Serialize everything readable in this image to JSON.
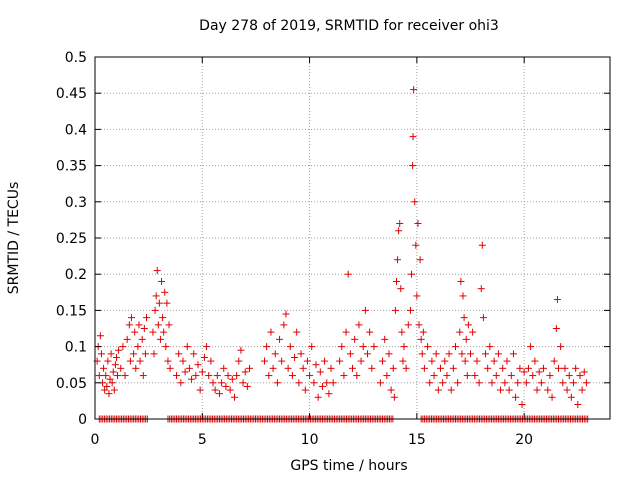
{
  "chart_data": {
    "type": "scatter",
    "title": "Day 278 of 2019, SRMTID for receiver ohi3",
    "xlabel": "GPS time / hours",
    "ylabel": "SRMTID / TECUs",
    "xlim": [
      0,
      24
    ],
    "ylim": [
      0,
      0.5
    ],
    "xticks": [
      0,
      5,
      10,
      15,
      20
    ],
    "xtick_labels": [
      "0",
      "5",
      "10",
      "15",
      "20"
    ],
    "yticks": [
      0,
      0.05,
      0.1,
      0.15,
      0.2,
      0.25,
      0.3,
      0.35,
      0.4,
      0.45,
      0.5
    ],
    "ytick_labels": [
      "0",
      "0.05",
      "0.1",
      "0.15",
      "0.2",
      "0.25",
      "0.3",
      "0.35",
      "0.4",
      "0.45",
      "0.5"
    ],
    "grid": true,
    "marker": "+",
    "marker_color": "#e00000",
    "series": [
      {
        "name": "SRMTID",
        "points": [
          [
            0.1,
            0.08
          ],
          [
            0.15,
            0.1
          ],
          [
            0.2,
            0.06
          ],
          [
            0.25,
            0.115
          ],
          [
            0.3,
            0.09
          ],
          [
            0.35,
            0.05
          ],
          [
            0.4,
            0.07
          ],
          [
            0.45,
            0.04
          ],
          [
            0.5,
            0.06
          ],
          [
            0.55,
            0.045
          ],
          [
            0.6,
            0.08
          ],
          [
            0.65,
            0.035
          ],
          [
            0.7,
            0.055
          ],
          [
            0.75,
            0.09
          ],
          [
            0.8,
            0.05
          ],
          [
            0.85,
            0.065
          ],
          [
            0.9,
            0.04
          ],
          [
            0.95,
            0.075
          ],
          [
            1.0,
            0.085
          ],
          [
            1.05,
            0.06
          ],
          [
            1.1,
            0.095
          ],
          [
            1.2,
            0.07
          ],
          [
            1.3,
            0.1
          ],
          [
            1.4,
            0.06
          ],
          [
            1.5,
            0.11
          ],
          [
            1.6,
            0.13
          ],
          [
            1.65,
            0.08
          ],
          [
            1.7,
            0.14
          ],
          [
            1.8,
            0.09
          ],
          [
            1.85,
            0.12
          ],
          [
            1.9,
            0.07
          ],
          [
            2.0,
            0.1
          ],
          [
            2.05,
            0.13
          ],
          [
            2.1,
            0.08
          ],
          [
            2.2,
            0.11
          ],
          [
            2.25,
            0.06
          ],
          [
            2.3,
            0.125
          ],
          [
            2.35,
            0.09
          ],
          [
            2.4,
            0.14
          ],
          [
            2.7,
            0.12
          ],
          [
            2.75,
            0.09
          ],
          [
            2.8,
            0.15
          ],
          [
            2.85,
            0.17
          ],
          [
            2.9,
            0.205
          ],
          [
            2.95,
            0.13
          ],
          [
            3.0,
            0.16
          ],
          [
            3.05,
            0.11
          ],
          [
            3.1,
            0.19
          ],
          [
            3.15,
            0.14
          ],
          [
            3.2,
            0.12
          ],
          [
            3.25,
            0.175
          ],
          [
            3.3,
            0.1
          ],
          [
            3.35,
            0.16
          ],
          [
            3.4,
            0.08
          ],
          [
            3.45,
            0.13
          ],
          [
            3.5,
            0.07
          ],
          [
            3.8,
            0.06
          ],
          [
            3.9,
            0.09
          ],
          [
            4.0,
            0.05
          ],
          [
            4.1,
            0.08
          ],
          [
            4.2,
            0.065
          ],
          [
            4.3,
            0.1
          ],
          [
            4.4,
            0.07
          ],
          [
            4.5,
            0.055
          ],
          [
            4.6,
            0.09
          ],
          [
            4.7,
            0.06
          ],
          [
            4.8,
            0.075
          ],
          [
            4.9,
            0.04
          ],
          [
            5.0,
            0.065
          ],
          [
            5.1,
            0.085
          ],
          [
            5.2,
            0.1
          ],
          [
            5.3,
            0.06
          ],
          [
            5.4,
            0.08
          ],
          [
            5.5,
            0.05
          ],
          [
            5.6,
            0.04
          ],
          [
            5.7,
            0.06
          ],
          [
            5.8,
            0.035
          ],
          [
            5.9,
            0.05
          ],
          [
            6.0,
            0.07
          ],
          [
            6.1,
            0.045
          ],
          [
            6.2,
            0.06
          ],
          [
            6.3,
            0.04
          ],
          [
            6.4,
            0.055
          ],
          [
            6.5,
            0.03
          ],
          [
            6.6,
            0.06
          ],
          [
            6.7,
            0.08
          ],
          [
            6.8,
            0.095
          ],
          [
            6.9,
            0.05
          ],
          [
            7.0,
            0.065
          ],
          [
            7.1,
            0.045
          ],
          [
            7.2,
            0.07
          ],
          [
            7.9,
            0.08
          ],
          [
            8.0,
            0.1
          ],
          [
            8.1,
            0.06
          ],
          [
            8.2,
            0.12
          ],
          [
            8.3,
            0.07
          ],
          [
            8.4,
            0.09
          ],
          [
            8.5,
            0.05
          ],
          [
            8.6,
            0.11
          ],
          [
            8.7,
            0.08
          ],
          [
            8.8,
            0.13
          ],
          [
            8.9,
            0.145
          ],
          [
            9.0,
            0.07
          ],
          [
            9.1,
            0.1
          ],
          [
            9.2,
            0.06
          ],
          [
            9.3,
            0.085
          ],
          [
            9.4,
            0.12
          ],
          [
            9.5,
            0.05
          ],
          [
            9.6,
            0.09
          ],
          [
            9.7,
            0.07
          ],
          [
            9.8,
            0.04
          ],
          [
            9.9,
            0.08
          ],
          [
            10.0,
            0.06
          ],
          [
            10.1,
            0.1
          ],
          [
            10.2,
            0.05
          ],
          [
            10.3,
            0.075
          ],
          [
            10.4,
            0.03
          ],
          [
            10.5,
            0.065
          ],
          [
            10.6,
            0.045
          ],
          [
            10.7,
            0.08
          ],
          [
            10.8,
            0.05
          ],
          [
            10.9,
            0.035
          ],
          [
            11.0,
            0.07
          ],
          [
            11.1,
            0.05
          ],
          [
            11.4,
            0.08
          ],
          [
            11.5,
            0.1
          ],
          [
            11.6,
            0.06
          ],
          [
            11.7,
            0.12
          ],
          [
            11.8,
            0.2
          ],
          [
            11.9,
            0.09
          ],
          [
            12.0,
            0.07
          ],
          [
            12.1,
            0.11
          ],
          [
            12.2,
            0.06
          ],
          [
            12.3,
            0.13
          ],
          [
            12.4,
            0.08
          ],
          [
            12.5,
            0.1
          ],
          [
            12.6,
            0.15
          ],
          [
            12.7,
            0.09
          ],
          [
            12.8,
            0.12
          ],
          [
            12.9,
            0.07
          ],
          [
            13.0,
            0.1
          ],
          [
            13.3,
            0.05
          ],
          [
            13.4,
            0.08
          ],
          [
            13.5,
            0.11
          ],
          [
            13.6,
            0.06
          ],
          [
            13.7,
            0.09
          ],
          [
            13.8,
            0.04
          ],
          [
            13.9,
            0.07
          ],
          [
            13.95,
            0.03
          ],
          [
            14.0,
            0.15
          ],
          [
            14.05,
            0.19
          ],
          [
            14.1,
            0.22
          ],
          [
            14.15,
            0.26
          ],
          [
            14.2,
            0.27
          ],
          [
            14.25,
            0.18
          ],
          [
            14.3,
            0.12
          ],
          [
            14.35,
            0.08
          ],
          [
            14.4,
            0.1
          ],
          [
            14.5,
            0.07
          ],
          [
            14.6,
            0.13
          ],
          [
            14.7,
            0.15
          ],
          [
            14.75,
            0.2
          ],
          [
            14.8,
            0.35
          ],
          [
            14.82,
            0.39
          ],
          [
            14.85,
            0.455
          ],
          [
            14.9,
            0.3
          ],
          [
            14.95,
            0.24
          ],
          [
            15.0,
            0.17
          ],
          [
            15.05,
            0.27
          ],
          [
            15.1,
            0.13
          ],
          [
            15.15,
            0.22
          ],
          [
            15.2,
            0.11
          ],
          [
            15.25,
            0.09
          ],
          [
            15.3,
            0.12
          ],
          [
            15.35,
            0.07
          ],
          [
            15.5,
            0.1
          ],
          [
            15.6,
            0.05
          ],
          [
            15.7,
            0.08
          ],
          [
            15.8,
            0.06
          ],
          [
            15.9,
            0.09
          ],
          [
            16.0,
            0.04
          ],
          [
            16.1,
            0.07
          ],
          [
            16.2,
            0.05
          ],
          [
            16.3,
            0.08
          ],
          [
            16.4,
            0.06
          ],
          [
            16.5,
            0.09
          ],
          [
            16.6,
            0.04
          ],
          [
            16.7,
            0.07
          ],
          [
            16.8,
            0.1
          ],
          [
            16.9,
            0.05
          ],
          [
            17.0,
            0.12
          ],
          [
            17.05,
            0.19
          ],
          [
            17.1,
            0.09
          ],
          [
            17.15,
            0.17
          ],
          [
            17.2,
            0.14
          ],
          [
            17.25,
            0.08
          ],
          [
            17.3,
            0.11
          ],
          [
            17.35,
            0.06
          ],
          [
            17.4,
            0.13
          ],
          [
            17.5,
            0.09
          ],
          [
            17.6,
            0.12
          ],
          [
            17.7,
            0.06
          ],
          [
            17.8,
            0.08
          ],
          [
            17.9,
            0.05
          ],
          [
            18.0,
            0.18
          ],
          [
            18.05,
            0.24
          ],
          [
            18.1,
            0.14
          ],
          [
            18.2,
            0.09
          ],
          [
            18.3,
            0.07
          ],
          [
            18.4,
            0.1
          ],
          [
            18.5,
            0.05
          ],
          [
            18.6,
            0.08
          ],
          [
            18.7,
            0.06
          ],
          [
            18.8,
            0.09
          ],
          [
            18.9,
            0.04
          ],
          [
            19.0,
            0.07
          ],
          [
            19.1,
            0.05
          ],
          [
            19.2,
            0.08
          ],
          [
            19.3,
            0.04
          ],
          [
            19.4,
            0.06
          ],
          [
            19.5,
            0.09
          ],
          [
            19.6,
            0.03
          ],
          [
            19.7,
            0.05
          ],
          [
            19.8,
            0.07
          ],
          [
            19.9,
            0.02
          ],
          [
            20.0,
            0.065
          ],
          [
            20.1,
            0.05
          ],
          [
            20.2,
            0.07
          ],
          [
            20.3,
            0.1
          ],
          [
            20.4,
            0.06
          ],
          [
            20.5,
            0.08
          ],
          [
            20.6,
            0.04
          ],
          [
            20.7,
            0.065
          ],
          [
            20.8,
            0.05
          ],
          [
            20.9,
            0.07
          ],
          [
            21.1,
            0.04
          ],
          [
            21.2,
            0.06
          ],
          [
            21.3,
            0.03
          ],
          [
            21.4,
            0.08
          ],
          [
            21.5,
            0.125
          ],
          [
            21.55,
            0.165
          ],
          [
            21.6,
            0.07
          ],
          [
            21.7,
            0.1
          ],
          [
            21.8,
            0.05
          ],
          [
            21.9,
            0.07
          ],
          [
            22.0,
            0.04
          ],
          [
            22.1,
            0.06
          ],
          [
            22.2,
            0.03
          ],
          [
            22.3,
            0.05
          ],
          [
            22.4,
            0.07
          ],
          [
            22.5,
            0.02
          ],
          [
            22.6,
            0.06
          ],
          [
            22.7,
            0.04
          ],
          [
            22.8,
            0.065
          ],
          [
            22.9,
            0.05
          ]
        ],
        "zero_ranges": [
          [
            0.2,
            2.5
          ],
          [
            3.4,
            13.9
          ],
          [
            15.2,
            23.0
          ]
        ]
      }
    ]
  }
}
